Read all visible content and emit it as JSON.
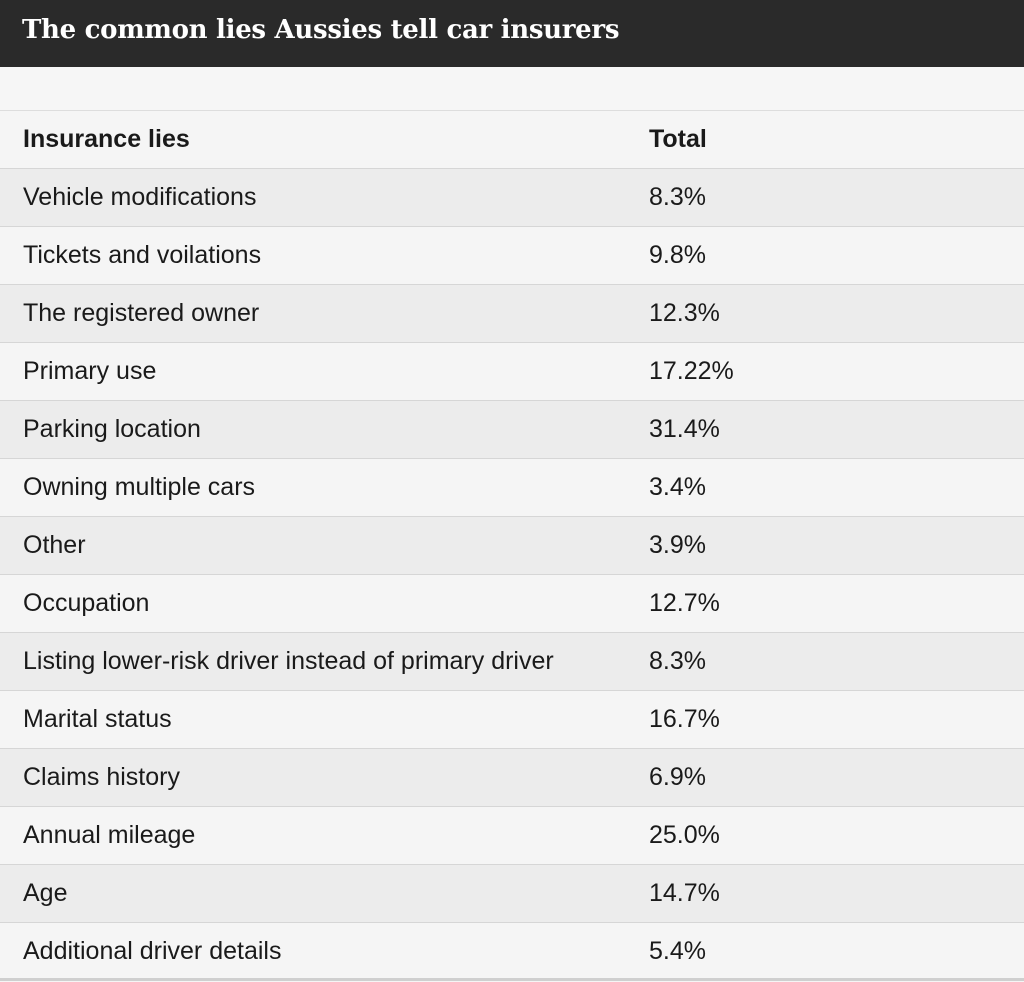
{
  "header": {
    "title": "The common lies Aussies tell car insurers"
  },
  "chart_data": {
    "type": "table",
    "title": "The common lies Aussies tell car insurers",
    "columns": [
      "Insurance lies",
      "Total"
    ],
    "rows": [
      {
        "label": "Vehicle modifications",
        "value": "8.3%"
      },
      {
        "label": "Tickets and voilations",
        "value": "9.8%"
      },
      {
        "label": "The registered owner",
        "value": "12.3%"
      },
      {
        "label": "Primary use",
        "value": "17.22%"
      },
      {
        "label": "Parking location",
        "value": "31.4%"
      },
      {
        "label": "Owning multiple cars",
        "value": "3.4%"
      },
      {
        "label": "Other",
        "value": "3.9%"
      },
      {
        "label": "Occupation",
        "value": "12.7%"
      },
      {
        "label": "Listing lower-risk driver instead of primary driver",
        "value": "8.3%"
      },
      {
        "label": "Marital status",
        "value": "16.7%"
      },
      {
        "label": "Claims history",
        "value": "6.9%"
      },
      {
        "label": "Annual mileage",
        "value": "25.0%"
      },
      {
        "label": "Age",
        "value": "14.7%"
      },
      {
        "label": "Additional driver details",
        "value": "5.4%"
      }
    ]
  }
}
